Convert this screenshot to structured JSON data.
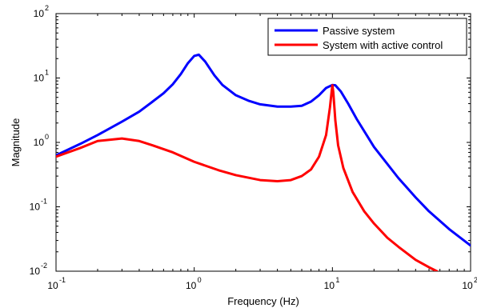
{
  "chart_data": {
    "type": "line",
    "title": "",
    "xlabel": "Frequency (Hz)",
    "ylabel": "Magnitude",
    "xscale": "log",
    "yscale": "log",
    "xlim": [
      0.1,
      100
    ],
    "ylim": [
      0.01,
      100
    ],
    "grid": false,
    "legend_position": "top-right",
    "x_ticks": [
      {
        "base": "10",
        "exp": "-1",
        "value": 0.1
      },
      {
        "base": "10",
        "exp": "0",
        "value": 1
      },
      {
        "base": "10",
        "exp": "1",
        "value": 10
      },
      {
        "base": "10",
        "exp": "2",
        "value": 100
      }
    ],
    "y_ticks": [
      {
        "base": "10",
        "exp": "-2",
        "value": 0.01
      },
      {
        "base": "10",
        "exp": "-1",
        "value": 0.1
      },
      {
        "base": "10",
        "exp": "0",
        "value": 1
      },
      {
        "base": "10",
        "exp": "1",
        "value": 10
      },
      {
        "base": "10",
        "exp": "2",
        "value": 100
      }
    ],
    "series": [
      {
        "name": "Passive system",
        "color": "#0000ff",
        "points": [
          [
            0.1,
            0.63
          ],
          [
            0.15,
            0.95
          ],
          [
            0.2,
            1.3
          ],
          [
            0.3,
            2.1
          ],
          [
            0.4,
            3.0
          ],
          [
            0.5,
            4.3
          ],
          [
            0.6,
            5.8
          ],
          [
            0.7,
            8.0
          ],
          [
            0.8,
            11.5
          ],
          [
            0.9,
            17.0
          ],
          [
            1.0,
            22.0
          ],
          [
            1.08,
            23.0
          ],
          [
            1.2,
            18.0
          ],
          [
            1.4,
            11.0
          ],
          [
            1.6,
            7.8
          ],
          [
            2.0,
            5.4
          ],
          [
            2.5,
            4.4
          ],
          [
            3.0,
            3.9
          ],
          [
            4.0,
            3.6
          ],
          [
            5.0,
            3.6
          ],
          [
            6.0,
            3.7
          ],
          [
            7.0,
            4.3
          ],
          [
            8.0,
            5.4
          ],
          [
            9.0,
            7.0
          ],
          [
            10.0,
            7.8
          ],
          [
            10.5,
            7.7
          ],
          [
            11.5,
            6.2
          ],
          [
            13.0,
            4.0
          ],
          [
            15.0,
            2.3
          ],
          [
            20.0,
            0.85
          ],
          [
            30.0,
            0.28
          ],
          [
            40.0,
            0.14
          ],
          [
            50.0,
            0.085
          ],
          [
            70.0,
            0.045
          ],
          [
            100.0,
            0.025
          ]
        ]
      },
      {
        "name": "System with active control",
        "color": "#ff0000",
        "points": [
          [
            0.1,
            0.6
          ],
          [
            0.15,
            0.82
          ],
          [
            0.2,
            1.05
          ],
          [
            0.3,
            1.15
          ],
          [
            0.4,
            1.05
          ],
          [
            0.5,
            0.9
          ],
          [
            0.7,
            0.7
          ],
          [
            1.0,
            0.5
          ],
          [
            1.5,
            0.37
          ],
          [
            2.0,
            0.31
          ],
          [
            3.0,
            0.26
          ],
          [
            4.0,
            0.25
          ],
          [
            5.0,
            0.26
          ],
          [
            6.0,
            0.3
          ],
          [
            7.0,
            0.38
          ],
          [
            8.0,
            0.6
          ],
          [
            9.0,
            1.3
          ],
          [
            9.6,
            3.5
          ],
          [
            9.9,
            6.5
          ],
          [
            10.0,
            7.7
          ],
          [
            10.15,
            6.0
          ],
          [
            10.5,
            2.2
          ],
          [
            11.0,
            0.9
          ],
          [
            12.0,
            0.4
          ],
          [
            14.0,
            0.17
          ],
          [
            17.0,
            0.085
          ],
          [
            20.0,
            0.055
          ],
          [
            25.0,
            0.033
          ],
          [
            30.0,
            0.024
          ],
          [
            40.0,
            0.015
          ],
          [
            50.0,
            0.0115
          ],
          [
            57.0,
            0.01
          ]
        ]
      }
    ]
  }
}
